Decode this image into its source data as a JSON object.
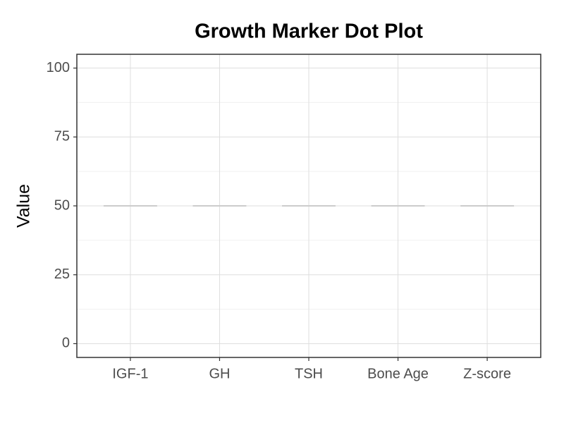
{
  "chart_data": {
    "type": "dot",
    "title": "Growth Marker Dot Plot",
    "y_label": "Value",
    "categories": [
      "IGF-1",
      "GH",
      "TSH",
      "Bone Age",
      "Z-score"
    ],
    "values": [
      50,
      50,
      50,
      50,
      50
    ],
    "color": "#cccccc",
    "ylim": [
      -5,
      105
    ],
    "yticks": [
      0,
      25,
      50,
      75,
      100
    ],
    "grid": true
  }
}
